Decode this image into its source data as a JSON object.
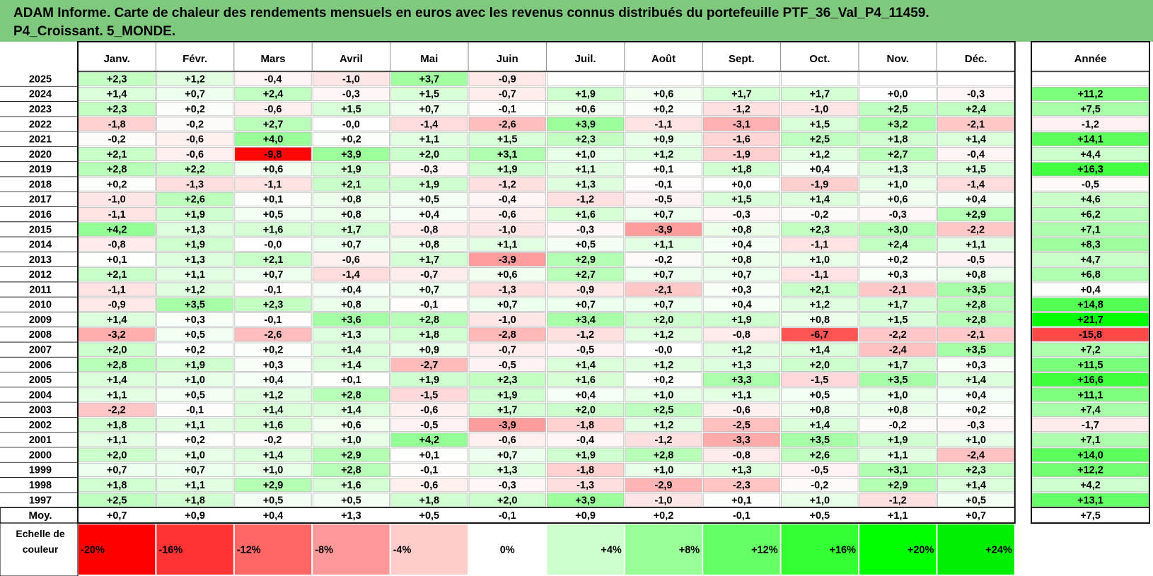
{
  "title_line1": "ADAM Informe. Carte de chaleur des rendements mensuels en euros avec les revenus connus distribués du portefeuille PTF_36_Val_P4_11459.",
  "title_line2": "P4_Croissant. 5_MONDE.",
  "chart_data": {
    "type": "heatmap",
    "title": "ADAM Informe. Carte de chaleur des rendements mensuels en euros avec les revenus connus distribués du portefeuille PTF_36_Val_P4_11459. P4_Croissant. 5_MONDE.",
    "months": [
      "Janv.",
      "Févr.",
      "Mars",
      "Avril",
      "Mai",
      "Juin",
      "Juil.",
      "Août",
      "Sept.",
      "Oct.",
      "Nov.",
      "Déc."
    ],
    "annual_header": "Année",
    "average_label": "Moy.",
    "rows": [
      {
        "year": "2025",
        "values": [
          "+2,3",
          "+1,2",
          "-0,4",
          "-1,0",
          "+3,7",
          "-0,9",
          "",
          "",
          "",
          "",
          "",
          ""
        ],
        "annual": ""
      },
      {
        "year": "2024",
        "values": [
          "+1,4",
          "+0,7",
          "+2,4",
          "-0,3",
          "+1,5",
          "-0,7",
          "+1,9",
          "+0,6",
          "+1,7",
          "+1,7",
          "+0,0",
          "-0,3"
        ],
        "annual": "+11,2"
      },
      {
        "year": "2023",
        "values": [
          "+2,3",
          "+0,2",
          "-0,6",
          "+1,5",
          "+0,7",
          "-0,1",
          "+0,6",
          "+0,2",
          "-1,2",
          "-1,0",
          "+2,5",
          "+2,4"
        ],
        "annual": "+7,5"
      },
      {
        "year": "2022",
        "values": [
          "-1,8",
          "-0,2",
          "+2,7",
          "-0,0",
          "-1,4",
          "-2,6",
          "+3,9",
          "-1,1",
          "-3,1",
          "+1,5",
          "+3,2",
          "-2,1"
        ],
        "annual": "-1,2"
      },
      {
        "year": "2021",
        "values": [
          "-0,2",
          "-0,6",
          "+4,0",
          "+0,2",
          "+1,1",
          "+1,5",
          "+2,3",
          "+0,9",
          "-1,6",
          "+2,5",
          "+1,8",
          "+1,4"
        ],
        "annual": "+14,1"
      },
      {
        "year": "2020",
        "values": [
          "+2,1",
          "-0,6",
          "-9,8",
          "+3,9",
          "+2,0",
          "+3,1",
          "+1,0",
          "+1,2",
          "-1,9",
          "+1,2",
          "+2,7",
          "-0,4"
        ],
        "annual": "+4,4"
      },
      {
        "year": "2019",
        "values": [
          "+2,8",
          "+2,2",
          "+0,6",
          "+1,9",
          "-0,3",
          "+1,9",
          "+1,1",
          "+0,1",
          "+1,8",
          "+0,4",
          "+1,3",
          "+1,5"
        ],
        "annual": "+16,3"
      },
      {
        "year": "2018",
        "values": [
          "+0,2",
          "-1,3",
          "-1,1",
          "+2,1",
          "+1,9",
          "-1,2",
          "+1,3",
          "-0,1",
          "+0,0",
          "-1,9",
          "+1,0",
          "-1,4"
        ],
        "annual": "-0,5"
      },
      {
        "year": "2017",
        "values": [
          "-1,0",
          "+2,6",
          "+0,1",
          "+0,8",
          "+0,5",
          "-0,4",
          "-1,2",
          "-0,5",
          "+1,5",
          "+1,4",
          "+0,6",
          "+0,4"
        ],
        "annual": "+4,6"
      },
      {
        "year": "2016",
        "values": [
          "-1,1",
          "+1,9",
          "+0,5",
          "+0,8",
          "+0,4",
          "-0,6",
          "+1,6",
          "+0,7",
          "-0,3",
          "-0,2",
          "-0,3",
          "+2,9"
        ],
        "annual": "+6,2"
      },
      {
        "year": "2015",
        "values": [
          "+4,2",
          "+1,3",
          "+1,6",
          "+1,7",
          "-0,8",
          "-1,0",
          "-0,3",
          "-3,9",
          "+0,8",
          "+2,3",
          "+3,0",
          "-2,2"
        ],
        "annual": "+7,1"
      },
      {
        "year": "2014",
        "values": [
          "-0,8",
          "+1,9",
          "-0,0",
          "+0,7",
          "+0,8",
          "+1,1",
          "+0,5",
          "+1,1",
          "+0,4",
          "-1,1",
          "+2,4",
          "+1,1"
        ],
        "annual": "+8,3"
      },
      {
        "year": "2013",
        "values": [
          "+0,1",
          "+1,3",
          "+2,1",
          "-0,6",
          "+1,7",
          "-3,9",
          "+2,9",
          "-0,2",
          "+0,8",
          "+1,0",
          "+0,2",
          "-0,5"
        ],
        "annual": "+4,7"
      },
      {
        "year": "2012",
        "values": [
          "+2,1",
          "+1,1",
          "+0,7",
          "-1,4",
          "-0,7",
          "+0,6",
          "+2,7",
          "+0,7",
          "+0,7",
          "-1,1",
          "+0,3",
          "+0,8"
        ],
        "annual": "+6,8"
      },
      {
        "year": "2011",
        "values": [
          "-1,1",
          "+1,2",
          "-0,1",
          "+0,4",
          "+0,7",
          "-1,3",
          "-0,9",
          "-2,1",
          "+0,3",
          "+2,1",
          "-2,1",
          "+3,5"
        ],
        "annual": "+0,4"
      },
      {
        "year": "2010",
        "values": [
          "-0,9",
          "+3,5",
          "+2,3",
          "+0,8",
          "-0,1",
          "+0,7",
          "+0,7",
          "+0,7",
          "+0,4",
          "+1,2",
          "+1,7",
          "+2,8"
        ],
        "annual": "+14,8"
      },
      {
        "year": "2009",
        "values": [
          "+1,4",
          "+0,3",
          "-0,1",
          "+3,6",
          "+2,8",
          "-1,0",
          "+3,4",
          "+2,0",
          "+1,9",
          "+0,8",
          "+1,5",
          "+2,8"
        ],
        "annual": "+21,7"
      },
      {
        "year": "2008",
        "values": [
          "-3,2",
          "+0,5",
          "-2,6",
          "+1,3",
          "+1,8",
          "-2,8",
          "-1,2",
          "+1,2",
          "-0,8",
          "-6,7",
          "-2,2",
          "-2,1"
        ],
        "annual": "-15,8"
      },
      {
        "year": "2007",
        "values": [
          "+2,0",
          "+0,2",
          "+0,2",
          "+1,4",
          "+0,9",
          "-0,7",
          "-0,5",
          "-0,0",
          "+1,2",
          "+1,4",
          "-2,4",
          "+3,5"
        ],
        "annual": "+7,2"
      },
      {
        "year": "2006",
        "values": [
          "+2,8",
          "+1,9",
          "+0,3",
          "+1,4",
          "-2,7",
          "-0,5",
          "+1,4",
          "+1,2",
          "+1,3",
          "+2,0",
          "+1,7",
          "+0,3"
        ],
        "annual": "+11,5"
      },
      {
        "year": "2005",
        "values": [
          "+1,4",
          "+1,0",
          "+0,4",
          "+0,1",
          "+1,9",
          "+2,3",
          "+1,6",
          "+0,2",
          "+3,3",
          "-1,5",
          "+3,5",
          "+1,4"
        ],
        "annual": "+16,6"
      },
      {
        "year": "2004",
        "values": [
          "+1,1",
          "+0,5",
          "+1,2",
          "+2,8",
          "-1,5",
          "+1,9",
          "+0,4",
          "+1,0",
          "+1,1",
          "+0,5",
          "+1,0",
          "+0,4"
        ],
        "annual": "+11,1"
      },
      {
        "year": "2003",
        "values": [
          "-2,2",
          "-0,1",
          "+1,4",
          "+1,4",
          "-0,6",
          "+1,7",
          "+2,0",
          "+2,5",
          "-0,6",
          "+0,8",
          "+0,8",
          "+0,2"
        ],
        "annual": "+7,4"
      },
      {
        "year": "2002",
        "values": [
          "+1,8",
          "+1,1",
          "+1,6",
          "+0,6",
          "-0,5",
          "-3,9",
          "-1,8",
          "+1,2",
          "-2,5",
          "+1,4",
          "-0,2",
          "-0,3"
        ],
        "annual": "-1,7"
      },
      {
        "year": "2001",
        "values": [
          "+1,1",
          "+0,2",
          "-0,2",
          "+1,0",
          "+4,2",
          "-0,6",
          "-0,4",
          "-1,2",
          "-3,3",
          "+3,5",
          "+1,9",
          "+1,0"
        ],
        "annual": "+7,1"
      },
      {
        "year": "2000",
        "values": [
          "+2,0",
          "+1,0",
          "+1,4",
          "+2,9",
          "+0,1",
          "+0,7",
          "+1,9",
          "+2,8",
          "-0,8",
          "+2,6",
          "+1,1",
          "-2,4"
        ],
        "annual": "+14,0"
      },
      {
        "year": "1999",
        "values": [
          "+0,7",
          "+0,7",
          "+1,0",
          "+2,8",
          "-0,1",
          "+1,3",
          "-1,8",
          "+1,0",
          "+1,3",
          "-0,5",
          "+3,1",
          "+2,3"
        ],
        "annual": "+12,2"
      },
      {
        "year": "1998",
        "values": [
          "+1,8",
          "+1,1",
          "+2,9",
          "+1,6",
          "-0,6",
          "-0,3",
          "-1,3",
          "-2,9",
          "-2,3",
          "-0,2",
          "+2,9",
          "+1,4"
        ],
        "annual": "+4,2"
      },
      {
        "year": "1997",
        "values": [
          "+2,5",
          "+1,8",
          "+0,5",
          "+0,5",
          "+1,8",
          "+2,0",
          "+3,9",
          "-1,0",
          "+0,1",
          "+1,0",
          "-1,2",
          "+0,5"
        ],
        "annual": "+13,1"
      }
    ],
    "averages": {
      "values": [
        "+0,7",
        "+0,9",
        "+0,4",
        "+1,3",
        "+0,5",
        "-0,1",
        "+0,9",
        "+0,2",
        "-0,1",
        "+0,5",
        "+1,1",
        "+0,7"
      ],
      "annual": "+7,5"
    },
    "color_scale": {
      "label_line1": "Echelle de",
      "label_line2": "couleur",
      "stops": [
        "-20%",
        "-16%",
        "-12%",
        "-8%",
        "-4%",
        "0%",
        "+4%",
        "+8%",
        "+12%",
        "+16%",
        "+20%",
        "+24%"
      ]
    }
  }
}
